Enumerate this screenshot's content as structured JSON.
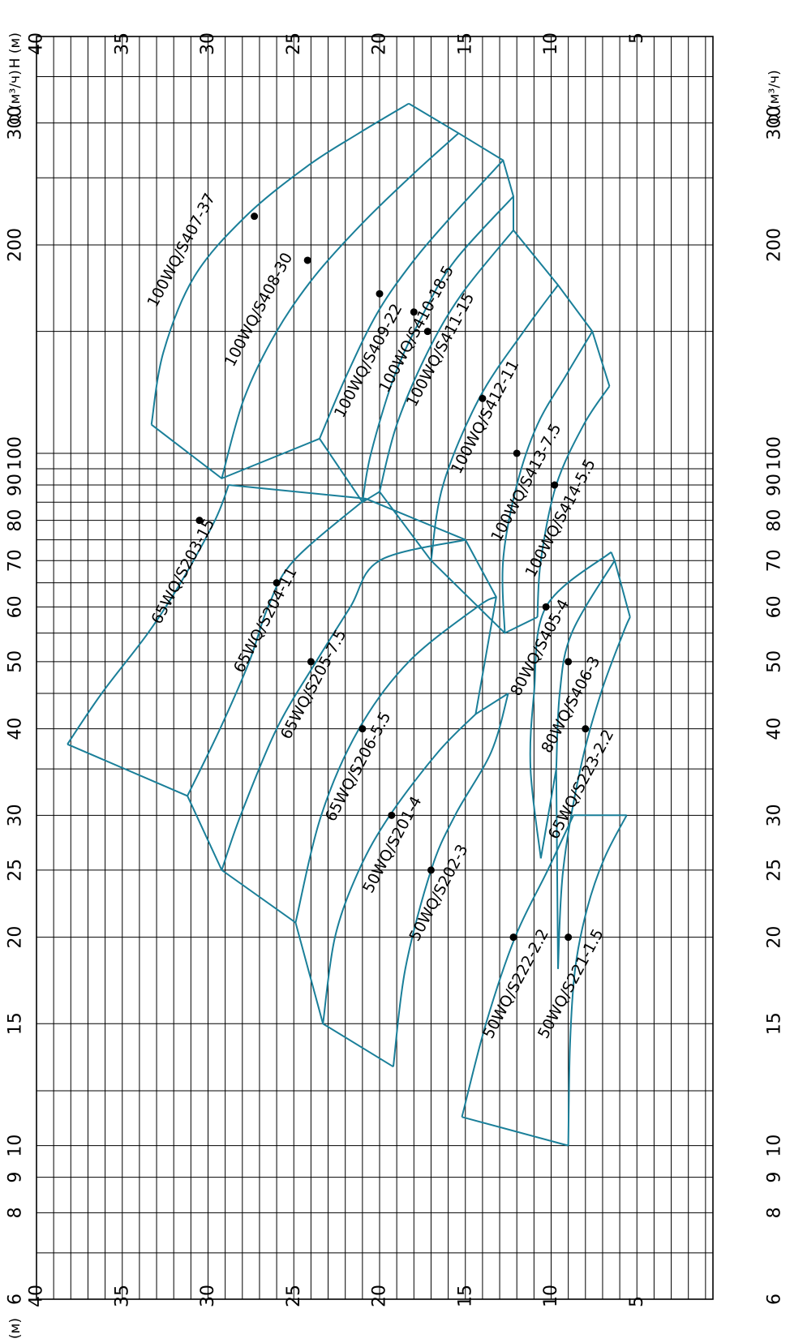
{
  "chart_data": {
    "type": "line",
    "title": "",
    "x_axis": {
      "label": "Q (м³/ч)",
      "scale": "log",
      "range": [
        6,
        400
      ],
      "tick_labels": [
        "6",
        "8",
        "9",
        "10",
        "15",
        "20",
        "25",
        "30",
        "40",
        "50",
        "60",
        "70",
        "80",
        "90",
        "100",
        "200",
        "300"
      ],
      "minor_grid": [
        7,
        12,
        35,
        45,
        55,
        65,
        75,
        85,
        95,
        150,
        250,
        350
      ]
    },
    "y_axis": {
      "label": "H (м)",
      "range": [
        0,
        40
      ],
      "tick_labels": [
        "5",
        "10",
        "15",
        "20",
        "25",
        "30",
        "35",
        "40"
      ]
    },
    "grid": true,
    "colors": {
      "curves": "#1a7f99",
      "grid": "#000000",
      "points": "#000000"
    },
    "series": [
      {
        "name": "100WQ/S407-37",
        "x": [
          110,
          140,
          180,
          220,
          260,
          290,
          320
        ],
        "y": [
          33.3,
          32.6,
          30.8,
          27.8,
          24.2,
          21.2,
          18.3
        ],
        "point": {
          "x": 220,
          "y": 27.3
        }
      },
      {
        "name": "100WQ/S408-30",
        "x": [
          92,
          120,
          150,
          180,
          215,
          255,
          290
        ],
        "y": [
          29.2,
          27.9,
          26.0,
          23.8,
          21.0,
          17.9,
          15.4
        ],
        "point": {
          "x": 190,
          "y": 24.2
        }
      },
      {
        "name": "100WQ/S409-22",
        "x": [
          105,
          130,
          160,
          190,
          220,
          265
        ],
        "y": [
          23.5,
          21.9,
          20.1,
          18.0,
          15.8,
          12.8
        ],
        "point": {
          "x": 170,
          "y": 20.0
        }
      },
      {
        "name": "100WQ/S410-18.5",
        "x": [
          85,
          100,
          130,
          160,
          190,
          235
        ],
        "y": [
          21.0,
          20.5,
          19.1,
          17.4,
          15.6,
          12.2
        ],
        "point": {
          "x": 160,
          "y": 18.0
        }
      },
      {
        "name": "100WQ/S411-15",
        "x": [
          88,
          110,
          140,
          170,
          210
        ],
        "y": [
          20.0,
          19.0,
          17.2,
          15.2,
          12.2
        ],
        "point": {
          "x": 150,
          "y": 17.2
        }
      },
      {
        "name": "100WQ/S412-11",
        "x": [
          70,
          90,
          120,
          150,
          175
        ],
        "y": [
          17.0,
          16.3,
          14.2,
          11.6,
          9.6
        ],
        "point": {
          "x": 120,
          "y": 14.0
        }
      },
      {
        "name": "100WQ/S413-7.5",
        "x": [
          55,
          70,
          90,
          110,
          130,
          150
        ],
        "y": [
          12.7,
          12.8,
          12.0,
          10.8,
          9.1,
          7.6
        ],
        "point": {
          "x": 100,
          "y": 12.0
        }
      },
      {
        "name": "100WQ/S414-5.5",
        "x": [
          58,
          70,
          90,
          110,
          125
        ],
        "y": [
          10.8,
          10.6,
          9.7,
          8.1,
          6.6
        ],
        "point": {
          "x": 90,
          "y": 9.8
        }
      },
      {
        "name": "65WQ/S203-15",
        "x": [
          38,
          45,
          55,
          65,
          80,
          90
        ],
        "y": [
          38.2,
          36.2,
          33.5,
          31.6,
          29.6,
          28.8
        ],
        "point": {
          "x": 80,
          "y": 30.5
        }
      },
      {
        "name": "65WQ/S204-11",
        "x": [
          32,
          40,
          50,
          60,
          70,
          86
        ],
        "y": [
          31.2,
          29.3,
          27.6,
          26.5,
          25.0,
          20.8
        ],
        "point": {
          "x": 65,
          "y": 26.0
        }
      },
      {
        "name": "65WQ/S205-7.5",
        "x": [
          25,
          30,
          40,
          50,
          60,
          70,
          75
        ],
        "y": [
          29.2,
          28.1,
          26.0,
          23.7,
          21.7,
          20.0,
          15.0
        ],
        "point": {
          "x": 50,
          "y": 24.0
        }
      },
      {
        "name": "65WQ/S206-5.5",
        "x": [
          21,
          30,
          40,
          50,
          60,
          62
        ],
        "y": [
          24.9,
          23.4,
          21.2,
          18.3,
          14.3,
          13.2
        ],
        "point": {
          "x": 40,
          "y": 21.0
        }
      },
      {
        "name": "50WQ/S201-4",
        "x": [
          15,
          20,
          25,
          30,
          37,
          42
        ],
        "y": [
          23.3,
          22.6,
          21.2,
          19.4,
          16.6,
          14.4
        ],
        "point": {
          "x": 30,
          "y": 19.3
        }
      },
      {
        "name": "50WQ/S202-3",
        "x": [
          13,
          18,
          25,
          30,
          37,
          45
        ],
        "y": [
          19.2,
          18.5,
          17.0,
          15.6,
          13.5,
          12.5
        ],
        "point": {
          "x": 25,
          "y": 17.0
        }
      },
      {
        "name": "80WQ/S405-4",
        "x": [
          26,
          35,
          45,
          60,
          72
        ],
        "y": [
          10.6,
          11.2,
          11.0,
          10.3,
          6.5
        ],
        "point": {
          "x": 60,
          "y": 10.3
        }
      },
      {
        "name": "80WQ/S406-3",
        "x": [
          35,
          45,
          55,
          70
        ],
        "y": [
          9.7,
          9.5,
          8.8,
          6.3
        ],
        "point": {
          "x": 50,
          "y": 9.0
        }
      },
      {
        "name": "65WQ/S223-2.2",
        "x": [
          18,
          25,
          35,
          45,
          55,
          58
        ],
        "y": [
          9.6,
          9.3,
          8.3,
          7.1,
          5.8,
          5.4
        ],
        "point": {
          "x": 40,
          "y": 8.0
        }
      },
      {
        "name": "50WQ/S222-2.2",
        "x": [
          11,
          15,
          20,
          25,
          30
        ],
        "y": [
          15.2,
          13.8,
          12.1,
          10.2,
          8.7
        ],
        "point": {
          "x": 20,
          "y": 12.2
        }
      },
      {
        "name": "50WQ/S221-1.5",
        "x": [
          10,
          14,
          18,
          22,
          26,
          30
        ],
        "y": [
          9.0,
          8.9,
          8.6,
          7.9,
          6.9,
          5.6
        ],
        "point": {
          "x": 20,
          "y": 9.0
        }
      }
    ],
    "labels": [
      {
        "text": "100WQ/S407-37",
        "at": [
          195,
          31.3
        ]
      },
      {
        "text": "100WQ/S408-30",
        "at": [
          160,
          26.8
        ]
      },
      {
        "text": "100WQ/S409-22",
        "at": [
          135,
          20.4
        ]
      },
      {
        "text": "100WQ/S410-18.5",
        "at": [
          150,
          17.6
        ]
      },
      {
        "text": "100WQ/S411-15",
        "at": [
          140,
          16.2
        ]
      },
      {
        "text": "100WQ/S412-11",
        "at": [
          112,
          13.6
        ]
      },
      {
        "text": "100WQ/S413-7.5",
        "at": [
          90,
          11.2
        ]
      },
      {
        "text": "100WQ/S414-5.5",
        "at": [
          80,
          9.2
        ]
      },
      {
        "text": "65WQ/S203-15",
        "at": [
          67,
          31.2
        ]
      },
      {
        "text": "65WQ/S204-11",
        "at": [
          57,
          26.4
        ]
      },
      {
        "text": "65WQ/S205-7.5",
        "at": [
          46,
          23.6
        ]
      },
      {
        "text": "65WQ/S206-5.5",
        "at": [
          35,
          21.0
        ]
      },
      {
        "text": "50WQ/S201-4",
        "at": [
          27,
          19.0
        ]
      },
      {
        "text": "50WQ/S202-3",
        "at": [
          23,
          16.3
        ]
      },
      {
        "text": "80WQ/S405-4",
        "at": [
          52,
          10.4
        ]
      },
      {
        "text": "80WQ/S406-3",
        "at": [
          43,
          8.6
        ]
      },
      {
        "text": "65WQ/S223-2.2",
        "at": [
          33,
          8.0
        ]
      },
      {
        "text": "50WQ/S222-2.2",
        "at": [
          17,
          11.8
        ]
      },
      {
        "text": "50WQ/S221-1.5",
        "at": [
          17,
          8.6
        ]
      }
    ]
  }
}
